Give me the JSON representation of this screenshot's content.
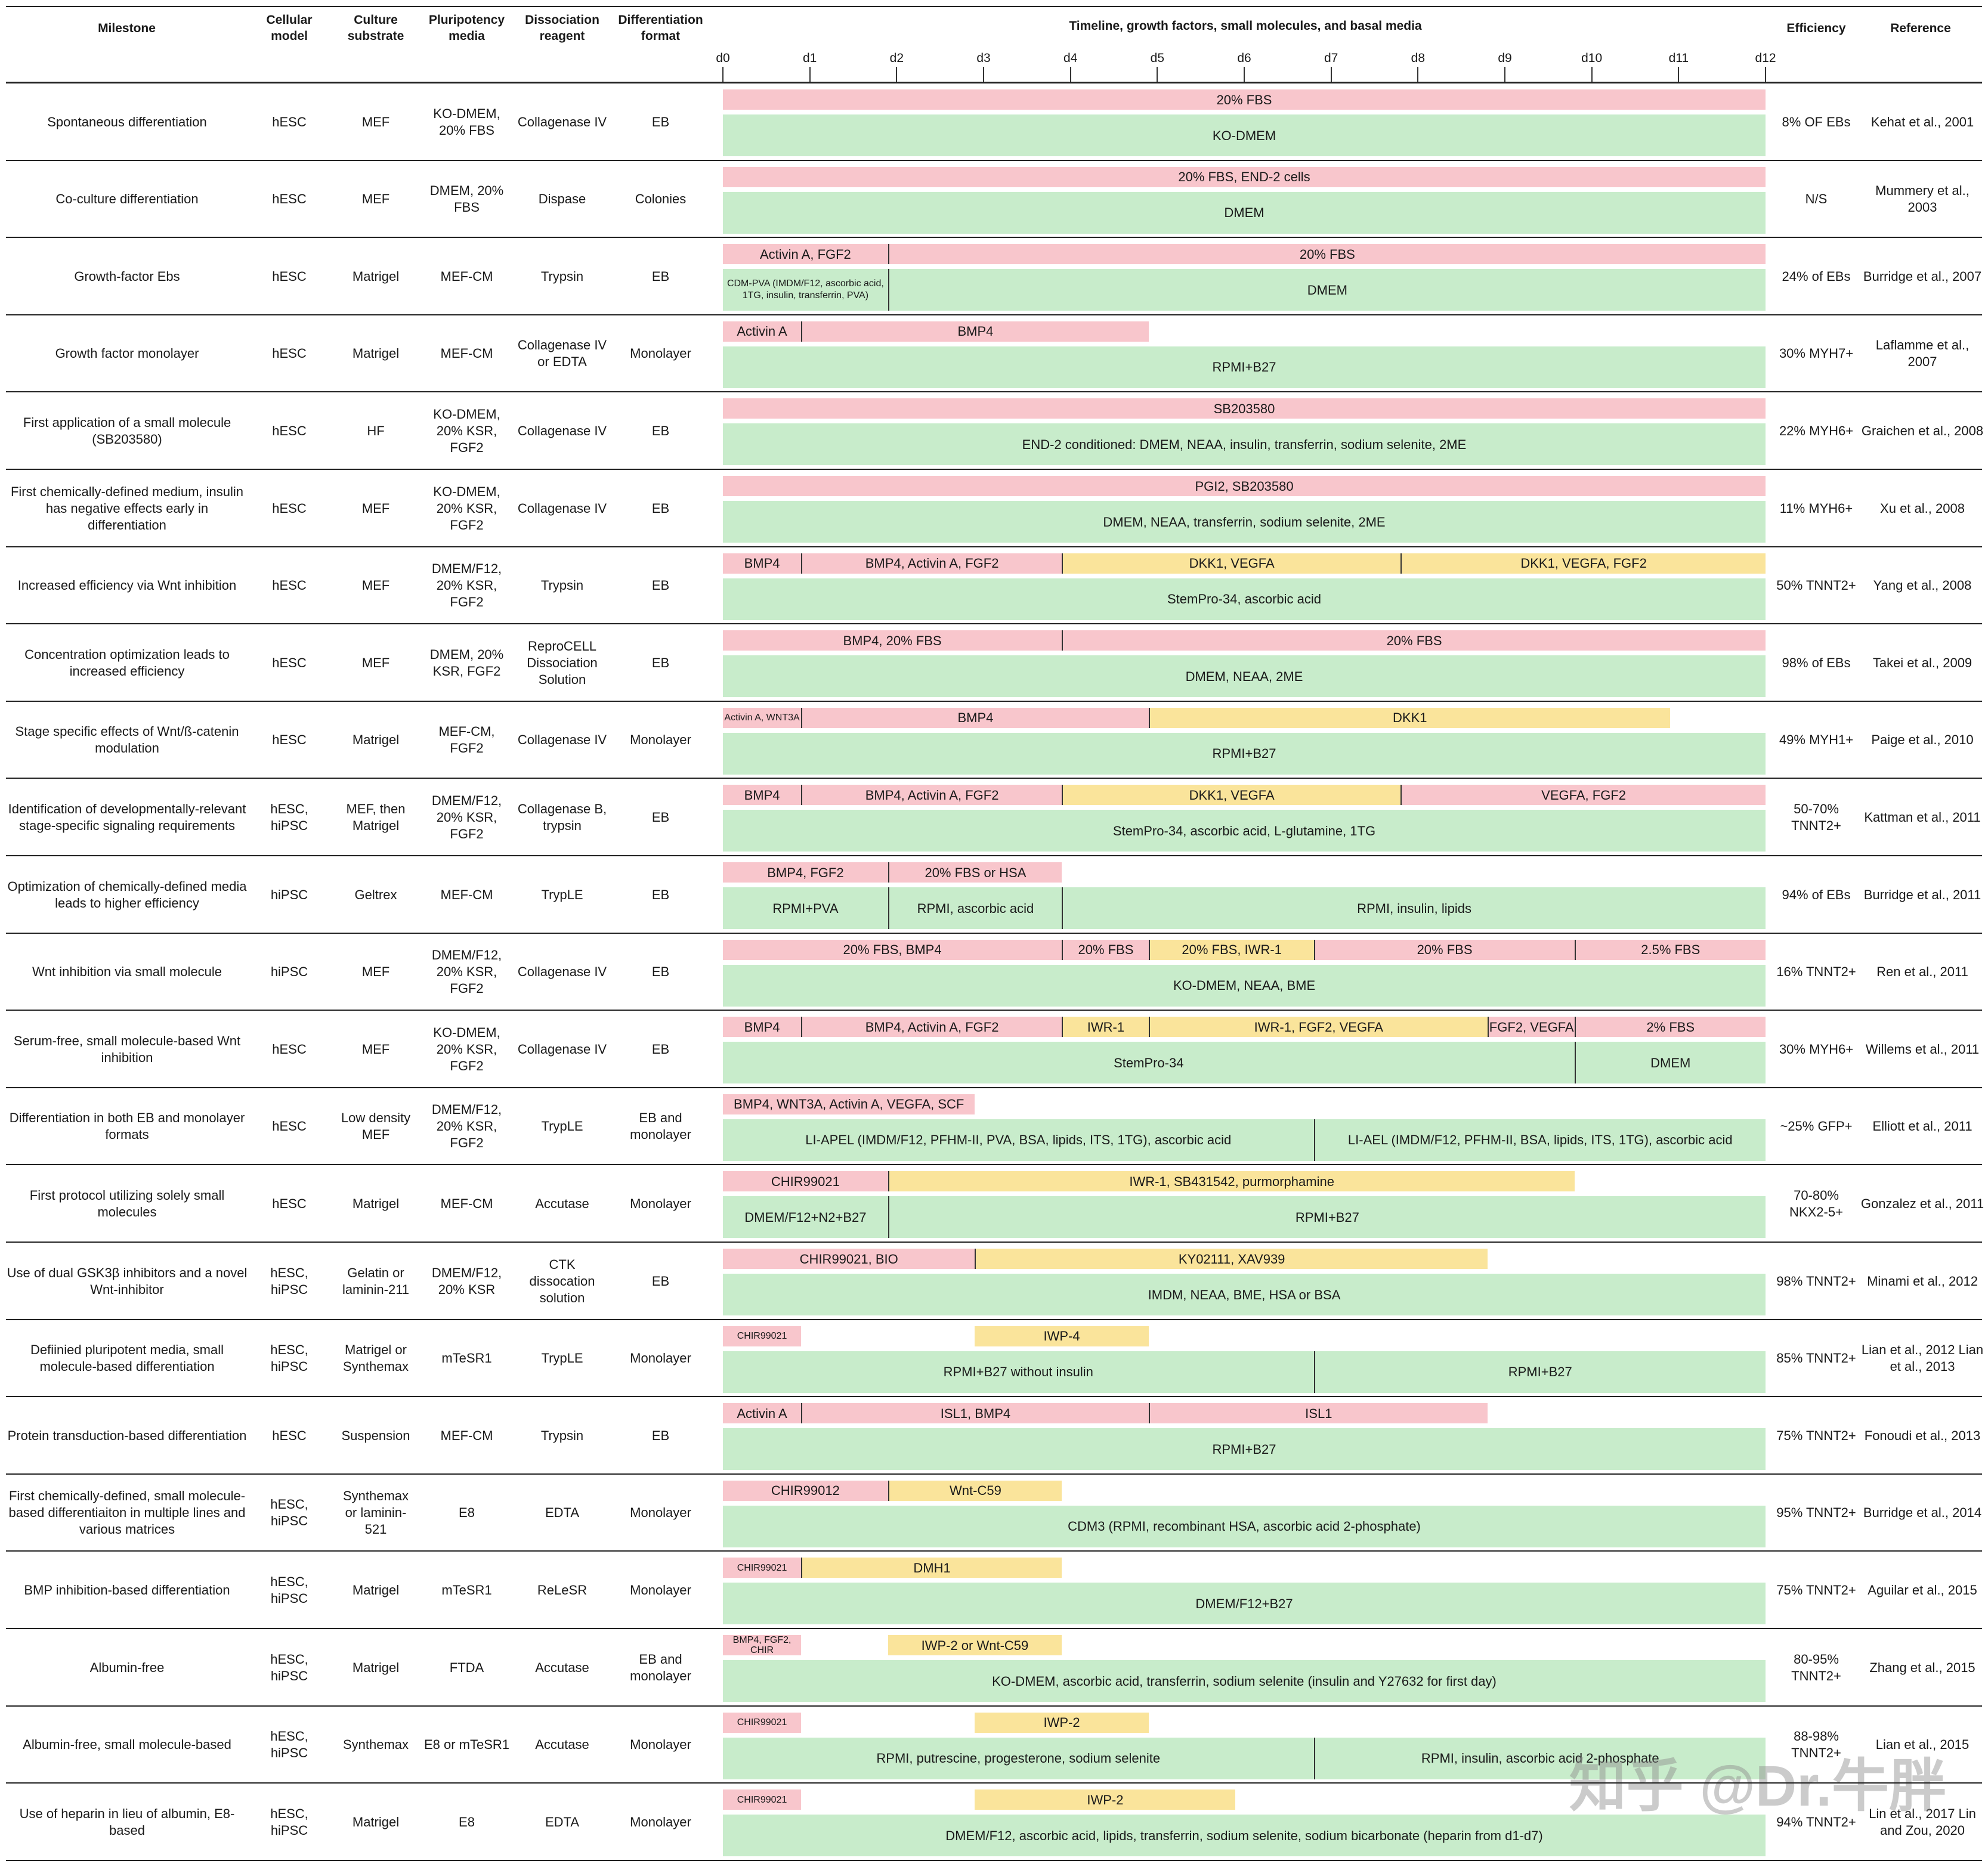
{
  "headers": {
    "milestone": "Milestone",
    "cellular_model": "Cellular model",
    "culture_substrate": "Culture substrate",
    "pluripotency_media": "Pluripotency media",
    "dissociation_reagent": "Dissociation reagent",
    "differentiation_format": "Differentiation format",
    "timeline": "Timeline, growth factors, small molecules, and basal media",
    "efficiency": "Efficiency",
    "reference": "Reference"
  },
  "days": [
    "d0",
    "d1",
    "d2",
    "d3",
    "d4",
    "d5",
    "d6",
    "d7",
    "d8",
    "d9",
    "d10",
    "d11",
    "d12"
  ],
  "colors": {
    "factor": "#f8c6cc",
    "small_molecule": "#fae49b",
    "media": "#c8eccb"
  },
  "rows": [
    {
      "milestone": "Spontaneous differentiation",
      "model": "hESC",
      "substrate": "MEF",
      "media": "KO-DMEM, 20% FBS",
      "reagent": "Collagenase IV",
      "format": "EB",
      "efficiency": "8% OF EBs",
      "reference": "Kehat et al., 2001",
      "top": [
        {
          "s": 0,
          "e": 12,
          "c": "pink",
          "t": "20% FBS"
        }
      ],
      "bottom": [
        {
          "s": 0,
          "e": 12,
          "t": "KO-DMEM"
        }
      ]
    },
    {
      "milestone": "Co-culture differentiation",
      "model": "hESC",
      "substrate": "MEF",
      "media": "DMEM, 20% FBS",
      "reagent": "Dispase",
      "format": "Colonies",
      "efficiency": "N/S",
      "reference": "Mummery et al., 2003",
      "top": [
        {
          "s": 0,
          "e": 12,
          "c": "pink",
          "t": "20% FBS, END-2 cells"
        }
      ],
      "bottom": [
        {
          "s": 0,
          "e": 12,
          "t": "DMEM"
        }
      ]
    },
    {
      "milestone": "Growth-factor Ebs",
      "model": "hESC",
      "substrate": "Matrigel",
      "media": "MEF-CM",
      "reagent": "Trypsin",
      "format": "EB",
      "efficiency": "24% of EBs",
      "reference": "Burridge et al., 2007",
      "top": [
        {
          "s": 0,
          "e": 1.9,
          "c": "pink",
          "t": "Activin A, FGF2"
        },
        {
          "s": 1.9,
          "e": 12,
          "c": "pink",
          "t": "20% FBS"
        }
      ],
      "bottom": [
        {
          "s": 0,
          "e": 1.9,
          "t": "CDM-PVA (IMDM/F12, ascorbic acid, 1TG, insulin, transferrin, PVA)",
          "small": true
        },
        {
          "s": 1.9,
          "e": 12,
          "t": "DMEM"
        }
      ]
    },
    {
      "milestone": "Growth factor monolayer",
      "model": "hESC",
      "substrate": "Matrigel",
      "media": "MEF-CM",
      "reagent": "Collagenase IV or EDTA",
      "format": "Monolayer",
      "efficiency": "30% MYH7+",
      "reference": "Laflamme et al., 2007",
      "top": [
        {
          "s": 0,
          "e": 0.9,
          "c": "pink",
          "t": "Activin A"
        },
        {
          "s": 0.9,
          "e": 4.9,
          "c": "pink",
          "t": "BMP4"
        }
      ],
      "bottom": [
        {
          "s": 0,
          "e": 12,
          "t": "RPMI+B27"
        }
      ]
    },
    {
      "milestone": "First application of a small molecule (SB203580)",
      "model": "hESC",
      "substrate": "HF",
      "media": "KO-DMEM, 20% KSR, FGF2",
      "reagent": "Collagenase IV",
      "format": "EB",
      "efficiency": "22% MYH6+",
      "reference": "Graichen et al., 2008",
      "top": [
        {
          "s": 0,
          "e": 12,
          "c": "pink",
          "t": "SB203580"
        }
      ],
      "bottom": [
        {
          "s": 0,
          "e": 12,
          "t": "END-2 conditioned: DMEM, NEAA, insulin, transferrin, sodium selenite, 2ME"
        }
      ]
    },
    {
      "milestone": "First chemically-defined medium, insulin has negative effects early in differentiation",
      "model": "hESC",
      "substrate": "MEF",
      "media": "KO-DMEM, 20% KSR, FGF2",
      "reagent": "Collagenase IV",
      "format": "EB",
      "efficiency": "11% MYH6+",
      "reference": "Xu et al., 2008",
      "top": [
        {
          "s": 0,
          "e": 12,
          "c": "pink",
          "t": "PGI2, SB203580"
        }
      ],
      "bottom": [
        {
          "s": 0,
          "e": 12,
          "t": "DMEM, NEAA, transferrin, sodium selenite, 2ME"
        }
      ]
    },
    {
      "milestone": "Increased efficiency via Wnt inhibition",
      "model": "hESC",
      "substrate": "MEF",
      "media": "DMEM/F12, 20% KSR, FGF2",
      "reagent": "Trypsin",
      "format": "EB",
      "efficiency": "50% TNNT2+",
      "reference": "Yang et al., 2008",
      "top": [
        {
          "s": 0,
          "e": 0.9,
          "c": "pink",
          "t": "BMP4"
        },
        {
          "s": 0.9,
          "e": 3.9,
          "c": "pink",
          "t": "BMP4, Activin A, FGF2"
        },
        {
          "s": 3.9,
          "e": 7.8,
          "c": "yellow",
          "t": "DKK1, VEGFA"
        },
        {
          "s": 7.8,
          "e": 12,
          "c": "yellow",
          "t": "DKK1, VEGFA, FGF2"
        }
      ],
      "bottom": [
        {
          "s": 0,
          "e": 12,
          "t": "StemPro-34, ascorbic acid"
        }
      ]
    },
    {
      "milestone": "Concentration optimization leads to increased efficiency",
      "model": "hESC",
      "substrate": "MEF",
      "media": "DMEM, 20% KSR, FGF2",
      "reagent": "ReproCELL Dissociation Solution",
      "format": "EB",
      "efficiency": "98% of EBs",
      "reference": "Takei et al., 2009",
      "top": [
        {
          "s": 0,
          "e": 3.9,
          "c": "pink",
          "t": "BMP4, 20% FBS"
        },
        {
          "s": 3.9,
          "e": 12,
          "c": "pink",
          "t": "20% FBS"
        }
      ],
      "bottom": [
        {
          "s": 0,
          "e": 12,
          "t": "DMEM, NEAA, 2ME"
        }
      ]
    },
    {
      "milestone": "Stage specific effects of Wnt/ß-catenin modulation",
      "model": "hESC",
      "substrate": "Matrigel",
      "media": "MEF-CM, FGF2",
      "reagent": "Collagenase IV",
      "format": "Monolayer",
      "efficiency": "49% MYH1+",
      "reference": "Paige et al., 2010",
      "top": [
        {
          "s": 0,
          "e": 0.9,
          "c": "pink",
          "t": "Activin A, WNT3A",
          "small": true
        },
        {
          "s": 0.9,
          "e": 4.9,
          "c": "pink",
          "t": "BMP4"
        },
        {
          "s": 4.9,
          "e": 10.9,
          "c": "yellow",
          "t": "DKK1"
        }
      ],
      "bottom": [
        {
          "s": 0,
          "e": 12,
          "t": "RPMI+B27"
        }
      ]
    },
    {
      "milestone": "Identification of developmentally-relevant stage-specific signaling requirements",
      "model": "hESC, hiPSC",
      "substrate": "MEF, then Matrigel",
      "media": "DMEM/F12, 20% KSR, FGF2",
      "reagent": "Collagenase B, trypsin",
      "format": "EB",
      "efficiency": "50-70% TNNT2+",
      "reference": "Kattman et al., 2011",
      "top": [
        {
          "s": 0,
          "e": 0.9,
          "c": "pink",
          "t": "BMP4"
        },
        {
          "s": 0.9,
          "e": 3.9,
          "c": "pink",
          "t": "BMP4, Activin A, FGF2"
        },
        {
          "s": 3.9,
          "e": 7.8,
          "c": "yellow",
          "t": "DKK1, VEGFA"
        },
        {
          "s": 7.8,
          "e": 12,
          "c": "pink",
          "t": "VEGFA, FGF2"
        }
      ],
      "bottom": [
        {
          "s": 0,
          "e": 12,
          "t": "StemPro-34, ascorbic acid, L-glutamine, 1TG"
        }
      ]
    },
    {
      "milestone": "Optimization of chemically-defined media leads to higher efficiency",
      "model": "hiPSC",
      "substrate": "Geltrex",
      "media": "MEF-CM",
      "reagent": "TrypLE",
      "format": "EB",
      "efficiency": "94% of EBs",
      "reference": "Burridge et al., 2011",
      "top": [
        {
          "s": 0,
          "e": 1.9,
          "c": "pink",
          "t": "BMP4, FGF2"
        },
        {
          "s": 1.9,
          "e": 3.9,
          "c": "pink",
          "t": "20% FBS or HSA"
        }
      ],
      "bottom": [
        {
          "s": 0,
          "e": 1.9,
          "t": "RPMI+PVA"
        },
        {
          "s": 1.9,
          "e": 3.9,
          "t": "RPMI, ascorbic acid"
        },
        {
          "s": 3.9,
          "e": 12,
          "t": "RPMI, insulin, lipids"
        }
      ]
    },
    {
      "milestone": "Wnt inhibition via small molecule",
      "model": "hiPSC",
      "substrate": "MEF",
      "media": "DMEM/F12, 20% KSR, FGF2",
      "reagent": "Collagenase IV",
      "format": "EB",
      "efficiency": "16% TNNT2+",
      "reference": "Ren et al., 2011",
      "top": [
        {
          "s": 0,
          "e": 3.9,
          "c": "pink",
          "t": "20% FBS, BMP4"
        },
        {
          "s": 3.9,
          "e": 4.9,
          "c": "pink",
          "t": "20% FBS"
        },
        {
          "s": 4.9,
          "e": 6.8,
          "c": "yellow",
          "t": "20% FBS, IWR-1"
        },
        {
          "s": 6.8,
          "e": 9.8,
          "c": "pink",
          "t": "20% FBS"
        },
        {
          "s": 9.8,
          "e": 12,
          "c": "pink",
          "t": "2.5% FBS"
        }
      ],
      "bottom": [
        {
          "s": 0,
          "e": 12,
          "t": "KO-DMEM, NEAA, BME"
        }
      ]
    },
    {
      "milestone": "Serum-free, small molecule-based Wnt inhibition",
      "model": "hESC",
      "substrate": "MEF",
      "media": "KO-DMEM, 20% KSR, FGF2",
      "reagent": "Collagenase IV",
      "format": "EB",
      "efficiency": "30% MYH6+",
      "reference": "Willems et al., 2011",
      "top": [
        {
          "s": 0,
          "e": 0.9,
          "c": "pink",
          "t": "BMP4"
        },
        {
          "s": 0.9,
          "e": 3.9,
          "c": "pink",
          "t": "BMP4, Activin A, FGF2"
        },
        {
          "s": 3.9,
          "e": 4.9,
          "c": "yellow",
          "t": "IWR-1"
        },
        {
          "s": 4.9,
          "e": 8.8,
          "c": "yellow",
          "t": "IWR-1, FGF2, VEGFA"
        },
        {
          "s": 8.8,
          "e": 9.8,
          "c": "pink",
          "t": "FGF2, VEGFA",
          "wrap": true
        },
        {
          "s": 9.8,
          "e": 12,
          "c": "pink",
          "t": "2% FBS"
        }
      ],
      "bottom": [
        {
          "s": 0,
          "e": 9.8,
          "t": "StemPro-34"
        },
        {
          "s": 9.8,
          "e": 12,
          "t": "DMEM"
        }
      ]
    },
    {
      "milestone": "Differentiation in both EB and monolayer formats",
      "model": "hESC",
      "substrate": "Low density MEF",
      "media": "DMEM/F12, 20% KSR, FGF2",
      "reagent": "TrypLE",
      "format": "EB and monolayer",
      "efficiency": "~25% GFP+",
      "reference": "Elliott et al., 2011",
      "top": [
        {
          "s": 0,
          "e": 2.9,
          "c": "pink",
          "t": "BMP4, WNT3A, Activin A, VEGFA, SCF"
        }
      ],
      "bottom": [
        {
          "s": 0,
          "e": 6.8,
          "t": "LI-APEL (IMDM/F12, PFHM-II, PVA, BSA, lipids, ITS, 1TG), ascorbic acid"
        },
        {
          "s": 6.8,
          "e": 12,
          "t": "LI-AEL (IMDM/F12, PFHM-II, BSA, lipids, ITS, 1TG), ascorbic acid"
        }
      ]
    },
    {
      "milestone": "First protocol utilizing solely small molecules",
      "model": "hESC",
      "substrate": "Matrigel",
      "media": "MEF-CM",
      "reagent": "Accutase",
      "format": "Monolayer",
      "efficiency": "70-80% NKX2-5+",
      "reference": "Gonzalez et al., 2011",
      "top": [
        {
          "s": 0,
          "e": 1.9,
          "c": "pink",
          "t": "CHIR99021"
        },
        {
          "s": 1.9,
          "e": 9.8,
          "c": "yellow",
          "t": "IWR-1, SB431542, purmorphamine"
        }
      ],
      "bottom": [
        {
          "s": 0,
          "e": 1.9,
          "t": "DMEM/F12+N2+B27"
        },
        {
          "s": 1.9,
          "e": 12,
          "t": "RPMI+B27"
        }
      ]
    },
    {
      "milestone": "Use of dual GSK3β inhibitors and a novel Wnt-inhibitor",
      "model": "hESC, hiPSC",
      "substrate": "Gelatin or laminin-211",
      "media": "DMEM/F12, 20% KSR",
      "reagent": "CTK dissocation solution",
      "format": "EB",
      "efficiency": "98% TNNT2+",
      "reference": "Minami et al., 2012",
      "top": [
        {
          "s": 0,
          "e": 2.9,
          "c": "pink",
          "t": "CHIR99021, BIO"
        },
        {
          "s": 2.9,
          "e": 8.8,
          "c": "yellow",
          "t": "KY02111, XAV939"
        }
      ],
      "bottom": [
        {
          "s": 0,
          "e": 12,
          "t": "IMDM, NEAA, BME, HSA or BSA"
        }
      ]
    },
    {
      "milestone": "Defiinied pluripotent media, small molecule-based differentiation",
      "model": "hESC, hiPSC",
      "substrate": "Matrigel or Synthemax",
      "media": "mTeSR1",
      "reagent": "TrypLE",
      "format": "Monolayer",
      "efficiency": "85% TNNT2+",
      "reference": "Lian et al., 2012 Lian et al., 2013",
      "top": [
        {
          "s": 0,
          "e": 0.9,
          "c": "pink",
          "t": "CHIR99021",
          "small": true
        },
        {
          "s": 2.9,
          "e": 4.9,
          "c": "yellow",
          "t": "IWP-4"
        }
      ],
      "bottom": [
        {
          "s": 0,
          "e": 6.8,
          "t": "RPMI+B27 without insulin"
        },
        {
          "s": 6.8,
          "e": 12,
          "t": "RPMI+B27"
        }
      ]
    },
    {
      "milestone": "Protein transduction-based differentiation",
      "model": "hESC",
      "substrate": "Suspension",
      "media": "MEF-CM",
      "reagent": "Trypsin",
      "format": "EB",
      "efficiency": "75% TNNT2+",
      "reference": "Fonoudi et al., 2013",
      "top": [
        {
          "s": 0,
          "e": 0.9,
          "c": "pink",
          "t": "Activin A"
        },
        {
          "s": 0.9,
          "e": 4.9,
          "c": "pink",
          "t": "ISL1, BMP4"
        },
        {
          "s": 4.9,
          "e": 8.8,
          "c": "pink",
          "t": "ISL1"
        }
      ],
      "bottom": [
        {
          "s": 0,
          "e": 12,
          "t": "RPMI+B27"
        }
      ]
    },
    {
      "milestone": "First chemically-defined, small molecule-based differentiaiton in multiple lines and various matrices",
      "model": "hESC, hiPSC",
      "substrate": "Synthemax or laminin-521",
      "media": "E8",
      "reagent": "EDTA",
      "format": "Monolayer",
      "efficiency": "95% TNNT2+",
      "reference": "Burridge et al., 2014",
      "top": [
        {
          "s": 0,
          "e": 1.9,
          "c": "pink",
          "t": "CHIR99012"
        },
        {
          "s": 1.9,
          "e": 3.9,
          "c": "yellow",
          "t": "Wnt-C59"
        }
      ],
      "bottom": [
        {
          "s": 0,
          "e": 12,
          "t": "CDM3 (RPMI, recombinant HSA, ascorbic acid 2-phosphate)"
        }
      ]
    },
    {
      "milestone": "BMP inhibition-based differentiation",
      "model": "hESC, hiPSC",
      "substrate": "Matrigel",
      "media": "mTeSR1",
      "reagent": "ReLeSR",
      "format": "Monolayer",
      "efficiency": "75% TNNT2+",
      "reference": "Aguilar et al., 2015",
      "top": [
        {
          "s": 0,
          "e": 0.9,
          "c": "pink",
          "t": "CHIR99021",
          "small": true
        },
        {
          "s": 0.9,
          "e": 3.9,
          "c": "yellow",
          "t": "DMH1"
        }
      ],
      "bottom": [
        {
          "s": 0,
          "e": 12,
          "t": "DMEM/F12+B27"
        }
      ]
    },
    {
      "milestone": "Albumin-free",
      "model": "hESC, hiPSC",
      "substrate": "Matrigel",
      "media": "FTDA",
      "reagent": "Accutase",
      "format": "EB and monolayer",
      "efficiency": "80-95% TNNT2+",
      "reference": "Zhang et al., 2015",
      "top": [
        {
          "s": 0,
          "e": 0.9,
          "c": "pink",
          "t": "BMP4, FGF2, CHIR",
          "small": true,
          "wrap": true
        },
        {
          "s": 1.9,
          "e": 3.9,
          "c": "yellow",
          "t": "IWP-2 or Wnt-C59"
        }
      ],
      "bottom": [
        {
          "s": 0,
          "e": 12,
          "t": "KO-DMEM, ascorbic acid, transferrin, sodium selenite (insulin and Y27632 for first day)"
        }
      ]
    },
    {
      "milestone": "Albumin-free, small molecule-based",
      "model": "hESC, hiPSC",
      "substrate": "Synthemax",
      "media": "E8 or mTeSR1",
      "reagent": "Accutase",
      "format": "Monolayer",
      "efficiency": "88-98% TNNT2+",
      "reference": "Lian et al., 2015",
      "top": [
        {
          "s": 0,
          "e": 0.9,
          "c": "pink",
          "t": "CHIR99021",
          "small": true
        },
        {
          "s": 2.9,
          "e": 4.9,
          "c": "yellow",
          "t": "IWP-2"
        }
      ],
      "bottom": [
        {
          "s": 0,
          "e": 6.8,
          "t": "RPMI, putrescine, progesterone, sodium selenite"
        },
        {
          "s": 6.8,
          "e": 12,
          "t": "RPMI, insulin, ascorbic acid 2-phosphate"
        }
      ]
    },
    {
      "milestone": "Use of heparin in lieu of albumin, E8-based",
      "model": "hESC, hiPSC",
      "substrate": "Matrigel",
      "media": "E8",
      "reagent": "EDTA",
      "format": "Monolayer",
      "efficiency": "94% TNNT2+",
      "reference": "Lin et al., 2017 Lin and Zou, 2020",
      "top": [
        {
          "s": 0,
          "e": 0.9,
          "c": "pink",
          "t": "CHIR99021",
          "small": true
        },
        {
          "s": 2.9,
          "e": 5.9,
          "c": "yellow",
          "t": "IWP-2"
        }
      ],
      "bottom": [
        {
          "s": 0,
          "e": 12,
          "t": "DMEM/F12, ascorbic acid, lipids, transferrin, sodium selenite, sodium bicarbonate (heparin from d1-d7)"
        }
      ]
    }
  ],
  "watermark": "知乎 @Dr.牛胖"
}
